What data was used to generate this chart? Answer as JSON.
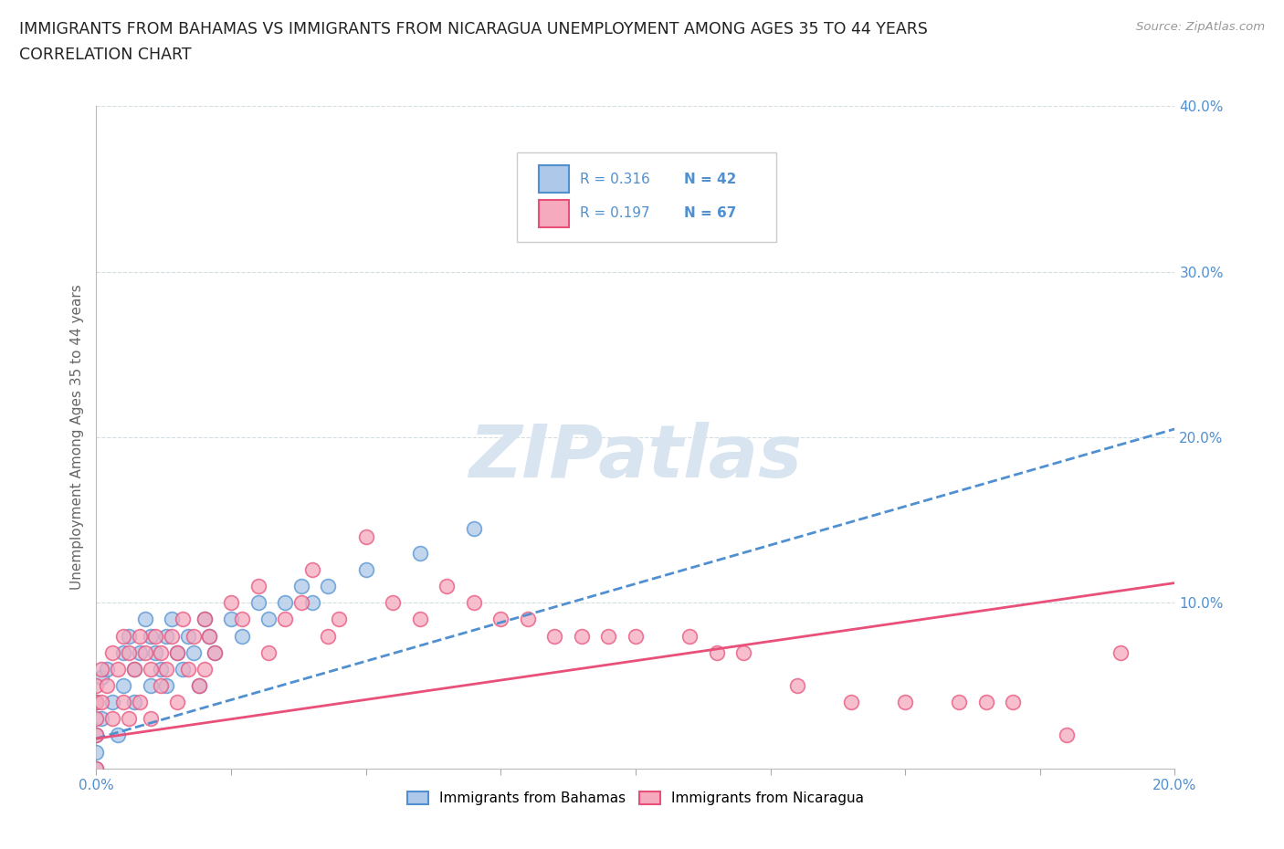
{
  "title_line1": "IMMIGRANTS FROM BAHAMAS VS IMMIGRANTS FROM NICARAGUA UNEMPLOYMENT AMONG AGES 35 TO 44 YEARS",
  "title_line2": "CORRELATION CHART",
  "source": "Source: ZipAtlas.com",
  "ylabel": "Unemployment Among Ages 35 to 44 years",
  "xlim": [
    0.0,
    0.2
  ],
  "ylim": [
    0.0,
    0.4
  ],
  "bahamas_color": "#adc8e8",
  "nicaragua_color": "#f5aabe",
  "bahamas_line_color": "#5090d0",
  "nicaragua_line_color": "#e8507a",
  "watermark_text": "ZIPatlas",
  "watermark_color": "#d8e4f0",
  "grid_color": "#c8d4dc",
  "background_color": "#ffffff",
  "title_color": "#222222",
  "axis_label_color": "#666666",
  "tick_color": "#5090d0",
  "source_color": "#999999",
  "legend_border_color": "#cccccc",
  "bah_R": 0.316,
  "bah_N": 42,
  "nic_R": 0.197,
  "nic_N": 67,
  "bah_line_x0": 0.0,
  "bah_line_y0": 0.018,
  "bah_line_x1": 0.2,
  "bah_line_y1": 0.205,
  "nic_line_x0": 0.0,
  "nic_line_y0": 0.018,
  "nic_line_x1": 0.2,
  "nic_line_y1": 0.112,
  "bah_scatter_x": [
    0.0,
    0.0,
    0.0,
    0.0,
    0.001,
    0.001,
    0.002,
    0.003,
    0.004,
    0.005,
    0.005,
    0.006,
    0.007,
    0.007,
    0.008,
    0.009,
    0.01,
    0.01,
    0.011,
    0.012,
    0.013,
    0.013,
    0.014,
    0.015,
    0.016,
    0.017,
    0.018,
    0.019,
    0.02,
    0.021,
    0.022,
    0.025,
    0.027,
    0.03,
    0.032,
    0.035,
    0.038,
    0.04,
    0.043,
    0.05,
    0.06,
    0.07
  ],
  "bah_scatter_y": [
    0.04,
    0.02,
    0.01,
    0.0,
    0.055,
    0.03,
    0.06,
    0.04,
    0.02,
    0.07,
    0.05,
    0.08,
    0.06,
    0.04,
    0.07,
    0.09,
    0.08,
    0.05,
    0.07,
    0.06,
    0.08,
    0.05,
    0.09,
    0.07,
    0.06,
    0.08,
    0.07,
    0.05,
    0.09,
    0.08,
    0.07,
    0.09,
    0.08,
    0.1,
    0.09,
    0.1,
    0.11,
    0.1,
    0.11,
    0.12,
    0.13,
    0.145
  ],
  "nic_scatter_x": [
    0.0,
    0.0,
    0.0,
    0.0,
    0.0,
    0.001,
    0.001,
    0.002,
    0.003,
    0.003,
    0.004,
    0.005,
    0.005,
    0.006,
    0.006,
    0.007,
    0.008,
    0.008,
    0.009,
    0.01,
    0.01,
    0.011,
    0.012,
    0.012,
    0.013,
    0.014,
    0.015,
    0.015,
    0.016,
    0.017,
    0.018,
    0.019,
    0.02,
    0.02,
    0.021,
    0.022,
    0.025,
    0.027,
    0.03,
    0.032,
    0.035,
    0.038,
    0.04,
    0.043,
    0.045,
    0.05,
    0.055,
    0.06,
    0.065,
    0.07,
    0.075,
    0.08,
    0.085,
    0.09,
    0.095,
    0.1,
    0.11,
    0.115,
    0.12,
    0.13,
    0.14,
    0.15,
    0.16,
    0.165,
    0.17,
    0.18,
    0.19
  ],
  "nic_scatter_y": [
    0.05,
    0.04,
    0.03,
    0.02,
    0.0,
    0.06,
    0.04,
    0.05,
    0.07,
    0.03,
    0.06,
    0.08,
    0.04,
    0.07,
    0.03,
    0.06,
    0.08,
    0.04,
    0.07,
    0.06,
    0.03,
    0.08,
    0.05,
    0.07,
    0.06,
    0.08,
    0.07,
    0.04,
    0.09,
    0.06,
    0.08,
    0.05,
    0.09,
    0.06,
    0.08,
    0.07,
    0.1,
    0.09,
    0.11,
    0.07,
    0.09,
    0.1,
    0.12,
    0.08,
    0.09,
    0.14,
    0.1,
    0.09,
    0.11,
    0.1,
    0.09,
    0.09,
    0.08,
    0.08,
    0.08,
    0.08,
    0.08,
    0.07,
    0.07,
    0.05,
    0.04,
    0.04,
    0.04,
    0.04,
    0.04,
    0.02,
    0.07
  ]
}
